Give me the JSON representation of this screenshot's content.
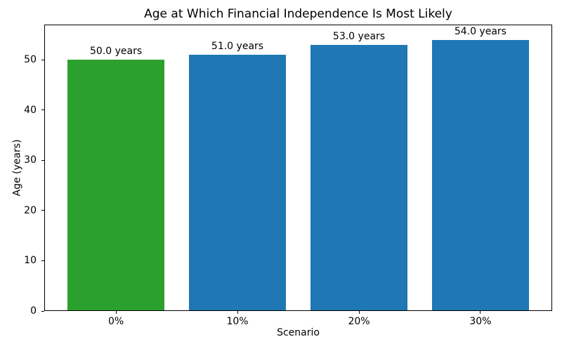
{
  "chart_data": {
    "type": "bar",
    "title": "Age at Which Financial Independence Is Most Likely",
    "xlabel": "Scenario",
    "ylabel": "Age (years)",
    "categories": [
      "0%",
      "10%",
      "20%",
      "30%"
    ],
    "values": [
      50.0,
      51.0,
      53.0,
      54.0
    ],
    "bar_labels": [
      "50.0 years",
      "51.0 years",
      "53.0 years",
      "54.0 years"
    ],
    "bar_colors": [
      "#2ca02c",
      "#1f77b4",
      "#1f77b4",
      "#1f77b4"
    ],
    "yticks": [
      0,
      10,
      20,
      30,
      40,
      50
    ],
    "ylim": [
      0,
      57
    ],
    "xlim": [
      -0.59,
      3.59
    ],
    "bar_width": 0.8,
    "grid": false,
    "legend_position": "none",
    "text_color": "#000000",
    "spine_color": "#000000",
    "background_color": "#ffffff"
  }
}
